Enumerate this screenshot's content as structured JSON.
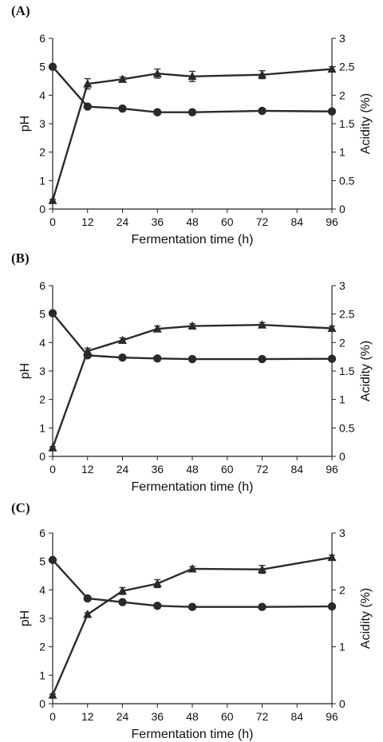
{
  "chart_data": [
    {
      "type": "line",
      "panel_label": "(A)",
      "x": [
        0,
        12,
        24,
        36,
        48,
        72,
        96
      ],
      "x_ticks": [
        0,
        12,
        24,
        36,
        48,
        60,
        72,
        84,
        96
      ],
      "xlim": [
        0,
        96
      ],
      "xlabel": "Fermentation time (h)",
      "ylabel_left": "pH",
      "ylim_left": [
        0,
        6
      ],
      "y_ticks_left": [
        0,
        1,
        2,
        3,
        4,
        5,
        6
      ],
      "ylabel_right": "Acidity (%)",
      "ylim_right": [
        0,
        3
      ],
      "y_ticks_right": [
        0,
        0.5,
        1,
        1.5,
        2,
        2.5,
        3
      ],
      "series": [
        {
          "marker": "circle",
          "axis": "left",
          "values": [
            5.0,
            3.6,
            3.53,
            3.4,
            3.4,
            3.45,
            3.43
          ],
          "errors": [
            0,
            0.05,
            0.05,
            0.04,
            0.04,
            0.04,
            0.04
          ]
        },
        {
          "marker": "triangle",
          "axis": "right",
          "values": [
            0.15,
            2.2,
            2.28,
            2.38,
            2.33,
            2.36,
            2.46
          ],
          "errors": [
            0.02,
            0.09,
            0.04,
            0.08,
            0.09,
            0.07,
            0.04
          ]
        }
      ]
    },
    {
      "type": "line",
      "panel_label": "(B)",
      "x": [
        0,
        12,
        24,
        36,
        48,
        72,
        96
      ],
      "x_ticks": [
        0,
        12,
        24,
        36,
        48,
        60,
        72,
        84,
        96
      ],
      "xlim": [
        0,
        96
      ],
      "xlabel": "Fermentation time (h)",
      "ylabel_left": "pH",
      "ylim_left": [
        0,
        6
      ],
      "y_ticks_left": [
        0,
        1,
        2,
        3,
        4,
        5,
        6
      ],
      "ylabel_right": "Acidity (%)",
      "ylim_right": [
        0,
        3
      ],
      "y_ticks_right": [
        0,
        0.5,
        1,
        1.5,
        2,
        2.5,
        3
      ],
      "series": [
        {
          "marker": "circle",
          "axis": "left",
          "values": [
            5.03,
            3.55,
            3.47,
            3.44,
            3.42,
            3.42,
            3.43
          ],
          "errors": [
            0,
            0.05,
            0.05,
            0.04,
            0.04,
            0.05,
            0.04
          ]
        },
        {
          "marker": "triangle",
          "axis": "right",
          "values": [
            0.15,
            1.85,
            2.04,
            2.24,
            2.29,
            2.31,
            2.25
          ],
          "errors": [
            0.02,
            0.05,
            0.04,
            0.05,
            0.04,
            0.04,
            0.04
          ]
        }
      ]
    },
    {
      "type": "line",
      "panel_label": "(C)",
      "x": [
        0,
        12,
        24,
        36,
        48,
        72,
        96
      ],
      "x_ticks": [
        0,
        12,
        24,
        36,
        48,
        60,
        72,
        84,
        96
      ],
      "xlim": [
        0,
        96
      ],
      "xlabel": "Fermentation time (h)",
      "ylabel_left": "pH",
      "ylim_left": [
        0,
        6
      ],
      "y_ticks_left": [
        0,
        1,
        2,
        3,
        4,
        5,
        6
      ],
      "ylabel_right": "Acidity (%)",
      "ylim_right": [
        0,
        3
      ],
      "y_ticks_right": [
        0,
        1,
        2,
        3
      ],
      "series": [
        {
          "marker": "circle",
          "axis": "left",
          "values": [
            5.05,
            3.7,
            3.57,
            3.44,
            3.4,
            3.4,
            3.42
          ],
          "errors": [
            0,
            0.04,
            0.04,
            0.04,
            0.04,
            0.04,
            0.04
          ]
        },
        {
          "marker": "triangle",
          "axis": "right",
          "values": [
            0.15,
            1.57,
            1.98,
            2.11,
            2.37,
            2.36,
            2.57
          ],
          "errors": [
            0.02,
            0.03,
            0.06,
            0.07,
            0.04,
            0.07,
            0.04
          ]
        }
      ]
    }
  ]
}
